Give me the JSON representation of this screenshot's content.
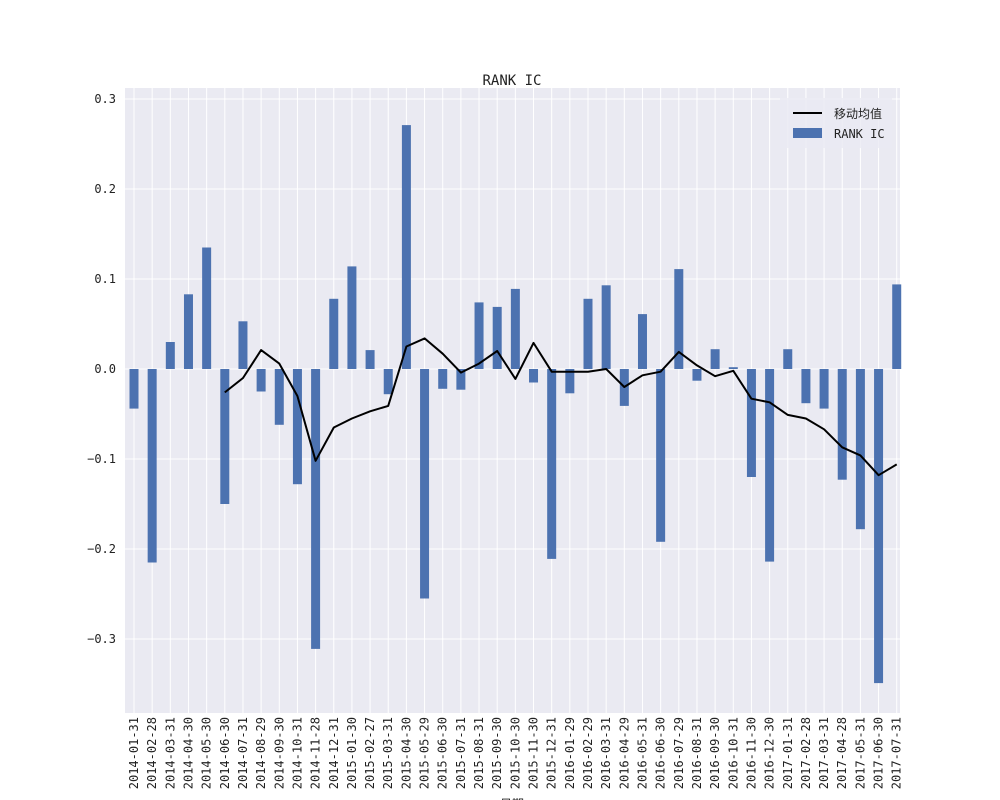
{
  "chart_data": {
    "type": "bar",
    "title": "RANK IC",
    "xlabel": "日期",
    "ylabel": "",
    "ylim": [
      -0.38,
      0.3
    ],
    "yticks": [
      -0.3,
      -0.2,
      -0.1,
      0.0,
      0.1,
      0.2,
      0.3
    ],
    "ytick_labels": [
      "−0.3",
      "−0.2",
      "−0.1",
      "0.0",
      "0.1",
      "0.2",
      "0.3"
    ],
    "grid": true,
    "legend_position": "top-right",
    "categories": [
      "2014-01-31",
      "2014-02-28",
      "2014-03-31",
      "2014-04-30",
      "2014-05-30",
      "2014-06-30",
      "2014-07-31",
      "2014-08-29",
      "2014-09-30",
      "2014-10-31",
      "2014-11-28",
      "2014-12-31",
      "2015-01-30",
      "2015-02-27",
      "2015-03-31",
      "2015-04-30",
      "2015-05-29",
      "2015-06-30",
      "2015-07-31",
      "2015-08-31",
      "2015-09-30",
      "2015-10-30",
      "2015-11-30",
      "2015-12-31",
      "2016-01-29",
      "2016-02-29",
      "2016-03-31",
      "2016-04-29",
      "2016-05-31",
      "2016-06-30",
      "2016-07-29",
      "2016-08-31",
      "2016-09-30",
      "2016-10-31",
      "2016-11-30",
      "2016-12-30",
      "2017-01-31",
      "2017-02-28",
      "2017-03-31",
      "2017-04-28",
      "2017-05-31",
      "2017-06-30",
      "2017-07-31"
    ],
    "series": [
      {
        "name": "RANK IC",
        "kind": "bar",
        "color": "#4c72b0",
        "values": [
          -0.044,
          -0.215,
          0.03,
          0.083,
          0.135,
          -0.15,
          0.053,
          -0.025,
          -0.062,
          -0.128,
          -0.311,
          0.078,
          0.114,
          0.021,
          -0.028,
          0.271,
          -0.255,
          -0.022,
          -0.023,
          0.074,
          0.069,
          0.089,
          -0.015,
          -0.211,
          -0.027,
          0.078,
          0.093,
          -0.041,
          0.061,
          -0.192,
          0.111,
          -0.013,
          0.022,
          0.002,
          -0.12,
          -0.214,
          0.022,
          -0.038,
          -0.044,
          -0.123,
          -0.178,
          -0.349,
          0.094
        ]
      },
      {
        "name": "移动均值",
        "kind": "line",
        "color": "#000000",
        "values": [
          null,
          null,
          null,
          null,
          null,
          -0.026,
          -0.01,
          0.021,
          0.006,
          -0.03,
          -0.102,
          -0.065,
          -0.055,
          -0.047,
          -0.041,
          0.025,
          0.034,
          0.017,
          -0.004,
          0.006,
          0.02,
          -0.011,
          0.029,
          -0.003,
          -0.003,
          -0.003,
          0.0,
          -0.02,
          -0.007,
          -0.003,
          0.019,
          0.004,
          -0.008,
          -0.002,
          -0.033,
          -0.037,
          -0.051,
          -0.055,
          -0.067,
          -0.087,
          -0.096,
          -0.118,
          -0.106
        ]
      }
    ]
  }
}
